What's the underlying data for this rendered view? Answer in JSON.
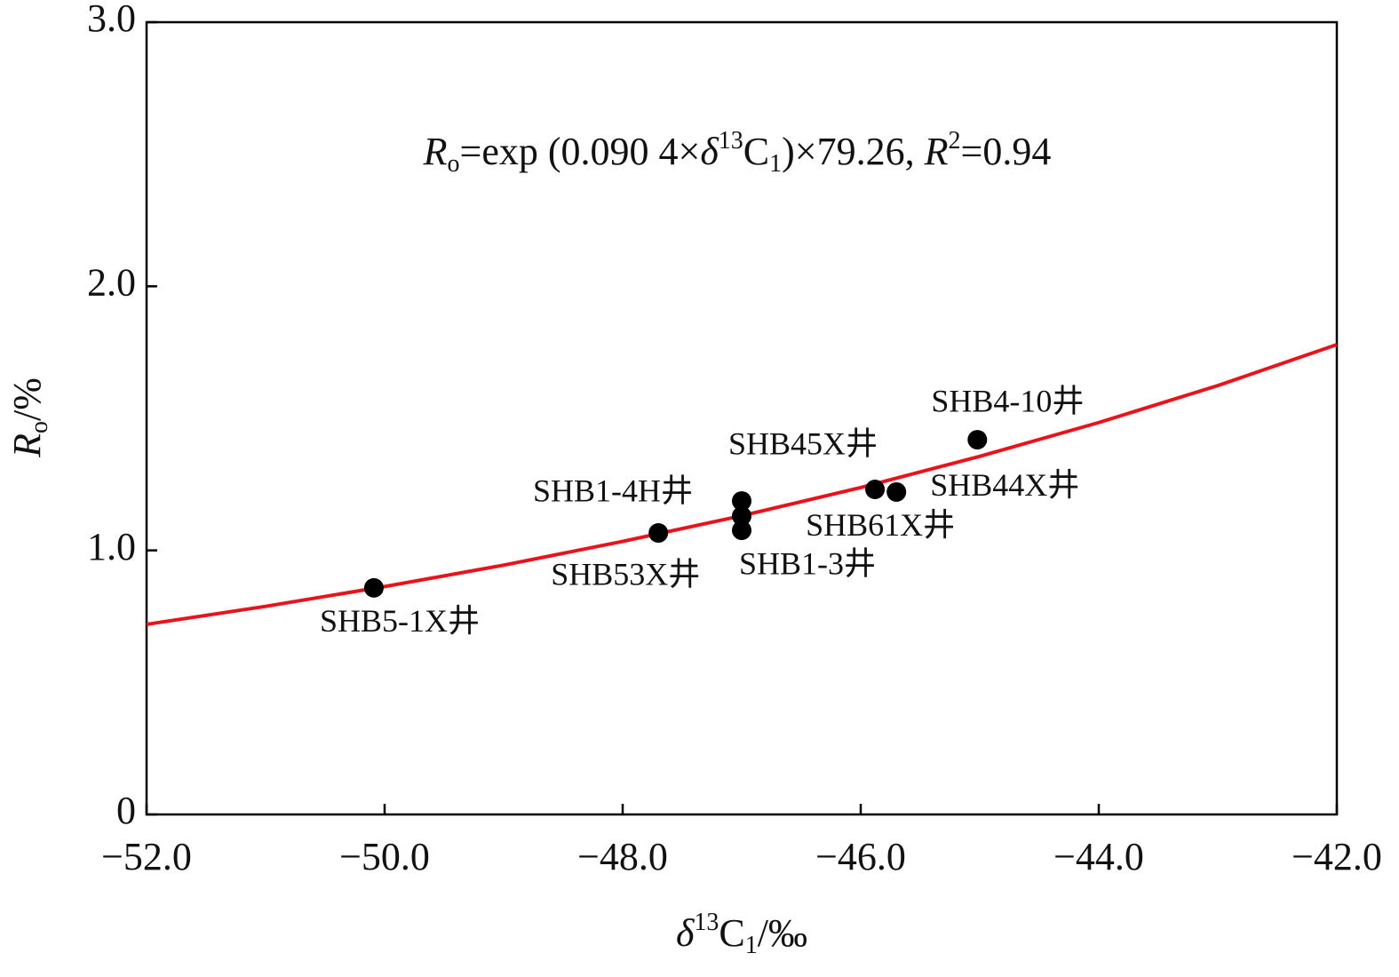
{
  "chart_data": {
    "type": "scatter",
    "equation": [
      "R",
      "o",
      "=exp (0.090 4×",
      "δ",
      "13",
      "C",
      "1",
      ")×79.26, ",
      "R",
      "2",
      "=0.94"
    ],
    "x_label": [
      "δ",
      "13",
      "C",
      "1",
      "/‰"
    ],
    "y_label": [
      "R",
      "o",
      "/%"
    ],
    "points": {
      "color": "#000000",
      "x": [
        -50.09,
        -47.7,
        -47.0,
        -47.0,
        -47.0,
        -45.88,
        -45.7,
        -45.02
      ],
      "values": [
        0.858,
        1.066,
        1.13,
        1.187,
        1.076,
        1.231,
        1.221,
        1.419
      ],
      "labels": [
        "SHB5-1X井",
        "SHB53X井",
        "SHB1-4H井",
        "SHB45X井",
        "SHB1-3井",
        "SHB61X井",
        "SHB44X井",
        "SHB4-10井"
      ]
    },
    "curve": {
      "color": "#e8141b",
      "x": [
        -52,
        -51,
        -50,
        -49,
        -48,
        -47,
        -46,
        -45,
        -44,
        -43,
        -42
      ],
      "values": [
        0.72,
        0.788,
        0.863,
        0.944,
        1.034,
        1.131,
        1.238,
        1.356,
        1.484,
        1.624,
        1.779
      ]
    },
    "xlim": [
      -52,
      -42
    ],
    "ylim": [
      0,
      3
    ],
    "xticks": [
      {
        "value": -52,
        "label": "−52.0"
      },
      {
        "value": -50,
        "label": "−50.0"
      },
      {
        "value": -48,
        "label": "−48.0"
      },
      {
        "value": -46,
        "label": "−46.0"
      },
      {
        "value": -44,
        "label": "−44.0"
      },
      {
        "value": -42,
        "label": "−42.0"
      }
    ],
    "yticks": [
      0,
      {
        "value": 1,
        "label": "1.0"
      },
      {
        "value": 2,
        "label": "2.0"
      },
      {
        "value": 3,
        "label": "3.0"
      }
    ]
  }
}
